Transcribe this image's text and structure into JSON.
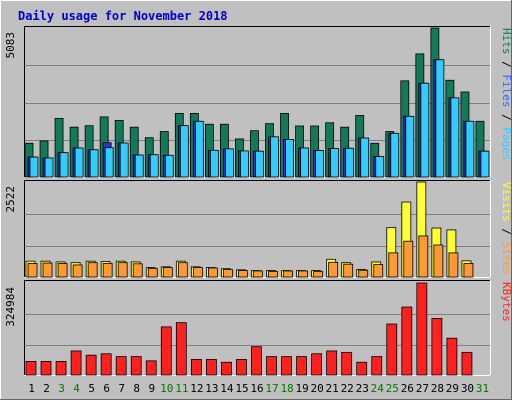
{
  "chart_data": {
    "type": "bar",
    "title": "Daily usage for November 2018",
    "categories": [
      "1",
      "2",
      "3",
      "4",
      "5",
      "6",
      "7",
      "8",
      "9",
      "10",
      "11",
      "12",
      "13",
      "14",
      "15",
      "16",
      "17",
      "18",
      "19",
      "20",
      "21",
      "22",
      "23",
      "24",
      "25",
      "26",
      "27",
      "28",
      "29",
      "30",
      "31"
    ],
    "weekend_days": [
      "3",
      "4",
      "10",
      "11",
      "17",
      "18",
      "24",
      "25",
      "31"
    ],
    "colors": {
      "title": "#0000cc",
      "weekday_label": "#000000",
      "weekend_label": "#007700",
      "hits": "#127a5a",
      "files": "#33ccff",
      "pages": "#3333cc",
      "visits": "#ffff33",
      "sites": "#ff9933",
      "kbytes": "#ff2020",
      "label_separator": "#000000"
    },
    "panels": [
      {
        "id": "hits-files-pages",
        "max_label": "5083",
        "ylim": [
          0,
          5083
        ],
        "legend": [
          {
            "name": "Pages",
            "color": "#33ccff"
          },
          {
            "name": "Files",
            "color": "#3366ff"
          },
          {
            "name": "Hits",
            "color": "#127a5a"
          }
        ],
        "series": [
          {
            "name": "Hits",
            "values": [
              1150,
              1230,
              2000,
              1700,
              1750,
              2050,
              1930,
              1700,
              1340,
              1550,
              2170,
              2170,
              1800,
              1800,
              1300,
              1580,
              1820,
              2170,
              1740,
              1740,
              1850,
              1700,
              2100,
              1150,
              1550,
              3280,
              4200,
              5083,
              3300,
              2900,
              1900
            ]
          },
          {
            "name": "Files",
            "values": [
              680,
              650,
              830,
              990,
              930,
              1000,
              1160,
              750,
              760,
              740,
              1750,
              1900,
              910,
              960,
              890,
              880,
              1370,
              1280,
              990,
              900,
              970,
              980,
              1330,
              700,
              1490,
              2070,
              3200,
              4000,
              2700,
              1900,
              880
            ]
          },
          {
            "name": "Pages",
            "values": [
              680,
              650,
              830,
              990,
              930,
              1170,
              1160,
              750,
              760,
              740,
              1750,
              1900,
              910,
              960,
              890,
              880,
              1370,
              1280,
              990,
              900,
              970,
              980,
              1330,
              700,
              1490,
              2070,
              3200,
              4000,
              2700,
              1900,
              880
            ]
          }
        ]
      },
      {
        "id": "visits-sites",
        "max_label": "2522",
        "ylim": [
          0,
          2522
        ],
        "legend": [
          {
            "name": "Sites",
            "color": "#ff9933"
          },
          {
            "name": "Visits",
            "color": "#ffff33"
          }
        ],
        "series": [
          {
            "name": "Visits",
            "values": [
              420,
              420,
              400,
              380,
              420,
              410,
              420,
              400,
              250,
              270,
              420,
              270,
              250,
              220,
              190,
              170,
              170,
              170,
              170,
              170,
              470,
              380,
              200,
              400,
              1310,
              1990,
              2522,
              1300,
              1250,
              430,
              0
            ]
          },
          {
            "name": "Sites",
            "values": [
              360,
              370,
              360,
              320,
              380,
              360,
              380,
              350,
              230,
              250,
              380,
              250,
              240,
              200,
              170,
              160,
              150,
              160,
              160,
              150,
              390,
              340,
              180,
              330,
              640,
              950,
              1090,
              850,
              640,
              360,
              0
            ]
          }
        ]
      },
      {
        "id": "kbytes",
        "max_label": "324984",
        "ylim": [
          0,
          324984
        ],
        "legend": [
          {
            "name": "KBytes",
            "color": "#ff2020"
          }
        ],
        "series": [
          {
            "name": "KBytes",
            "values": [
              48000,
              48000,
              48000,
              85000,
              70000,
              75000,
              65000,
              65000,
              50000,
              170000,
              185000,
              55000,
              55000,
              45000,
              55000,
              100000,
              65000,
              65000,
              65000,
              75000,
              85000,
              80000,
              45000,
              65000,
              180000,
              240000,
              324984,
              200000,
              130000,
              80000,
              0
            ]
          }
        ]
      }
    ]
  }
}
